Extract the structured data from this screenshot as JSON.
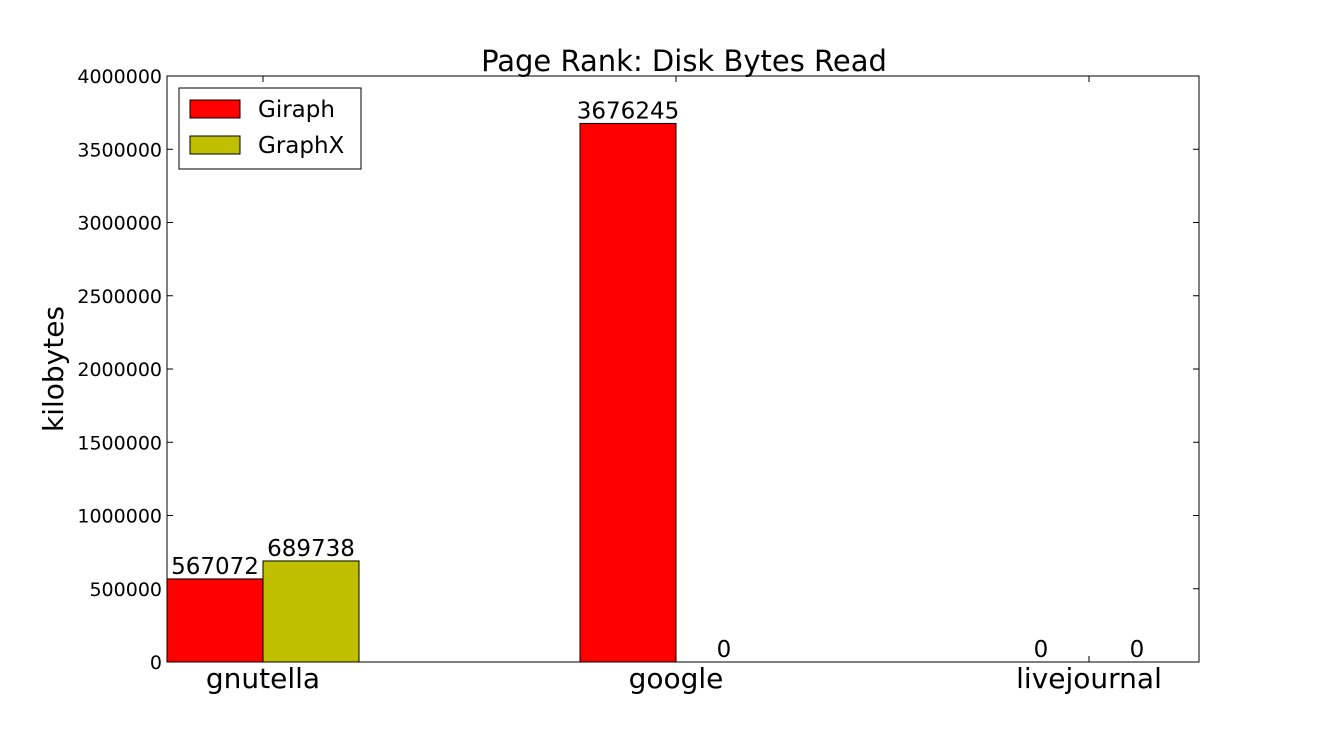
{
  "chart_data": {
    "type": "bar",
    "title": "Page Rank: Disk Bytes Read",
    "xlabel": "",
    "ylabel": "kilobytes",
    "categories": [
      "gnutella",
      "google",
      "livejournal"
    ],
    "series": [
      {
        "name": "Giraph",
        "color": "#ff0000",
        "values": [
          567072,
          3676245,
          0
        ]
      },
      {
        "name": "GraphX",
        "color": "#bfbf00",
        "values": [
          689738,
          0,
          0
        ]
      }
    ],
    "ylim": [
      0,
      4000000
    ],
    "yticks": [
      0,
      500000,
      1000000,
      1500000,
      2000000,
      2500000,
      3000000,
      3500000,
      4000000
    ],
    "data_labels": [
      [
        "567072",
        "3676245",
        "0"
      ],
      [
        "689738",
        "0",
        "0"
      ]
    ],
    "grid": false,
    "legend_position": "top-left"
  }
}
